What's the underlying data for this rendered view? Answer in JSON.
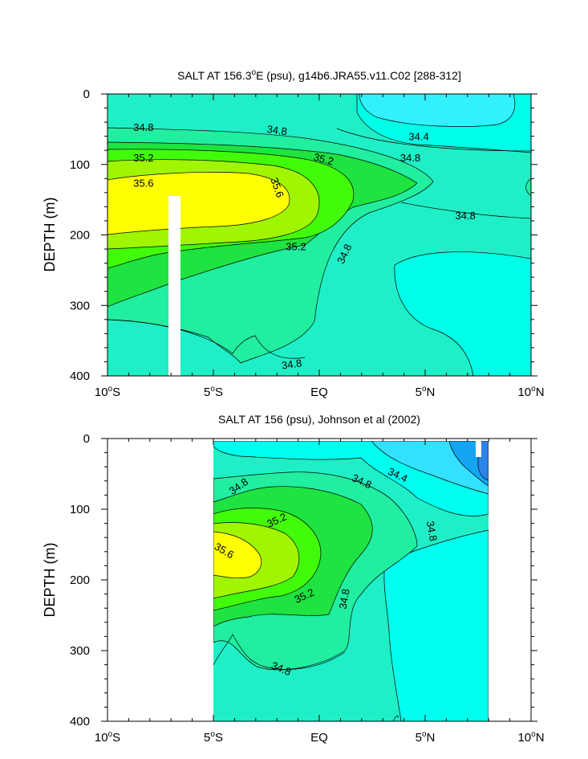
{
  "chart_data": [
    {
      "type": "contour",
      "title": "SALT AT 156.3°E (psu), g14b6.JRA55.v11.C02 [288-312]",
      "title_parts": {
        "pre": "SALT AT 156.3",
        "sup": "o",
        "post": "E (psu), g14b6.JRA55.v11.C02 [288-312]"
      },
      "ylabel": "DEPTH (m)",
      "xlim": [
        -10,
        10
      ],
      "ylim": [
        400,
        0
      ],
      "x_ticks": [
        {
          "value": -10,
          "num": "10",
          "hemi": "S"
        },
        {
          "value": -5,
          "num": "5",
          "hemi": "S"
        },
        {
          "value": 0,
          "num": "EQ",
          "hemi": ""
        },
        {
          "value": 5,
          "num": "5",
          "hemi": "N"
        },
        {
          "value": 10,
          "num": "10",
          "hemi": "N"
        }
      ],
      "y_ticks": [
        0,
        100,
        200,
        300,
        400
      ],
      "contour_interval": 0.2,
      "levels": [
        34.4,
        34.6,
        34.8,
        35.0,
        35.2,
        35.4,
        35.6
      ],
      "colors": {
        "lt34.4": "#33f0ff",
        "34.4-34.6": "#00ffe6",
        "34.6-34.8": "#1fefc6",
        "34.8-35.0": "#21ee9f",
        "35.0-35.2": "#1ee340",
        "35.2-35.4": "#41fb0a",
        "35.4-35.6": "#a0f500",
        "gt35.6": "#ffff00",
        "missing": "#ffffff"
      },
      "contour_labels": [
        {
          "text": "34.8",
          "x": -8.3,
          "y": 48,
          "rot": 0
        },
        {
          "text": "34.8",
          "x": -2.0,
          "y": 52,
          "rot": 8
        },
        {
          "text": "34.4",
          "x": 4.7,
          "y": 61,
          "rot": 0
        },
        {
          "text": "35.2",
          "x": -8.3,
          "y": 91,
          "rot": 0
        },
        {
          "text": "35.2",
          "x": 0.2,
          "y": 93,
          "rot": 15
        },
        {
          "text": "34.8",
          "x": 4.3,
          "y": 91,
          "rot": 0
        },
        {
          "text": "35.6",
          "x": -8.3,
          "y": 127,
          "rot": 0
        },
        {
          "text": "35.6",
          "x": -2.0,
          "y": 133,
          "rot": 70
        },
        {
          "text": "34.8",
          "x": 6.9,
          "y": 173,
          "rot": 0
        },
        {
          "text": "35.2",
          "x": -1.1,
          "y": 217,
          "rot": 0
        },
        {
          "text": "34.8",
          "x": 1.2,
          "y": 227,
          "rot": -65
        },
        {
          "text": "34.8",
          "x": -1.3,
          "y": 384,
          "rot": -8
        }
      ]
    },
    {
      "type": "contour",
      "title": "SALT AT 156 (psu), Johnson et al (2002)",
      "ylabel": "DEPTH (m)",
      "xlim": [
        -10,
        10
      ],
      "ylim": [
        400,
        0
      ],
      "data_xrange": [
        -5,
        8
      ],
      "x_ticks": [
        {
          "value": -10,
          "num": "10",
          "hemi": "S"
        },
        {
          "value": -5,
          "num": "5",
          "hemi": "S"
        },
        {
          "value": 0,
          "num": "EQ",
          "hemi": ""
        },
        {
          "value": 5,
          "num": "5",
          "hemi": "N"
        },
        {
          "value": 10,
          "num": "10",
          "hemi": "N"
        }
      ],
      "y_ticks": [
        0,
        100,
        200,
        300,
        400
      ],
      "contour_interval": 0.2,
      "levels": [
        34.0,
        34.2,
        34.4,
        34.6,
        34.8,
        35.0,
        35.2,
        35.4,
        35.6
      ],
      "colors": {
        "lt34.0": "#2c83e8",
        "34.0-34.2": "#14a5f2",
        "34.2-34.4": "#33e0ff",
        "34.4-34.6": "#00ffee",
        "34.6-34.8": "#1fefc6",
        "34.8-35.0": "#21ee9f",
        "35.0-35.2": "#1ee340",
        "35.2-35.4": "#41fb0a",
        "35.4-35.6": "#a0f500",
        "gt35.6": "#ffff00",
        "missing": "#ffffff"
      },
      "contour_labels": [
        {
          "text": "34.8",
          "x": -3.8,
          "y": 68,
          "rot": -35
        },
        {
          "text": "34.8",
          "x": 2.0,
          "y": 61,
          "rot": 25
        },
        {
          "text": "34.4",
          "x": 3.7,
          "y": 52,
          "rot": 25
        },
        {
          "text": "35.2",
          "x": -2.0,
          "y": 116,
          "rot": -25
        },
        {
          "text": "34.8",
          "x": 5.3,
          "y": 131,
          "rot": 80
        },
        {
          "text": "35.6",
          "x": -4.5,
          "y": 159,
          "rot": 30
        },
        {
          "text": "35.2",
          "x": -0.7,
          "y": 223,
          "rot": -25
        },
        {
          "text": "34.8",
          "x": 1.2,
          "y": 227,
          "rot": -80
        },
        {
          "text": "34.8",
          "x": -1.8,
          "y": 326,
          "rot": 22
        }
      ]
    }
  ]
}
